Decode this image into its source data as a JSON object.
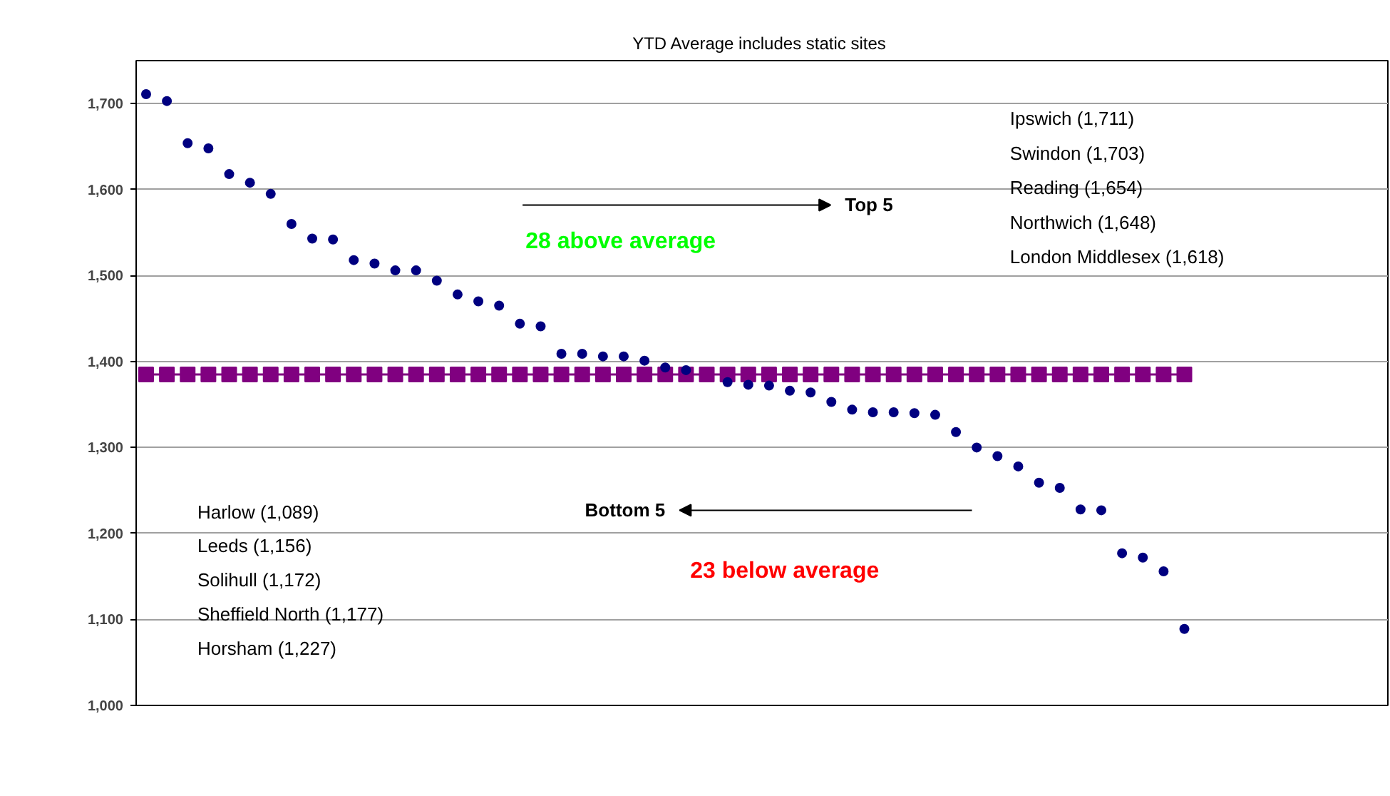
{
  "chart_data": {
    "type": "scatter",
    "title": "YTD  Average includes static sites",
    "categories": [
      null,
      null,
      null,
      null,
      null,
      null,
      null,
      null,
      null,
      null,
      null,
      null,
      null,
      null,
      null,
      null,
      null,
      null,
      null,
      null,
      null,
      null,
      null,
      null,
      null,
      null,
      null,
      null,
      null,
      null,
      null,
      null,
      null,
      null,
      null,
      null,
      null,
      null,
      null,
      null,
      null,
      null,
      null,
      null,
      null,
      null,
      null,
      null,
      null,
      null,
      null
    ],
    "series": [
      {
        "marker": "circle",
        "color": "#000080",
        "values": [
          1711,
          1703,
          1654,
          1648,
          1618,
          1608,
          1595,
          1560,
          1543,
          1542,
          1518,
          1514,
          1506,
          1506,
          1494,
          1478,
          1470,
          1465,
          1444,
          1441,
          1409,
          1409,
          1406,
          1406,
          1401,
          1393,
          1390,
          null,
          1376,
          1373,
          1372,
          1366,
          1364,
          1353,
          1344,
          1341,
          1341,
          1340,
          1338,
          1318,
          1300,
          1290,
          1278,
          1259,
          1253,
          1228,
          1227,
          1177,
          1172,
          1156,
          1089
        ]
      },
      {
        "type": "line",
        "marker": "square",
        "color": "#800080",
        "values": [
          1385,
          1385,
          1385,
          1385,
          1385,
          1385,
          1385,
          1385,
          1385,
          1385,
          1385,
          1385,
          1385,
          1385,
          1385,
          1385,
          1385,
          1385,
          1385,
          1385,
          1385,
          1385,
          1385,
          1385,
          1385,
          1385,
          1385,
          1385,
          1385,
          1385,
          1385,
          1385,
          1385,
          1385,
          1385,
          1385,
          1385,
          1385,
          1385,
          1385,
          1385,
          1385,
          1385,
          1385,
          1385,
          1385,
          1385,
          1385,
          1385,
          1385,
          1385
        ]
      }
    ],
    "ylim": [
      1000,
      1750
    ],
    "yticks": [
      {
        "value": 1000,
        "label": "1,000"
      },
      {
        "value": 1100,
        "label": "1,100"
      },
      {
        "value": 1200,
        "label": "1,200"
      },
      {
        "value": 1300,
        "label": "1,300"
      },
      {
        "value": 1400,
        "label": "1,400"
      },
      {
        "value": 1500,
        "label": "1,500"
      },
      {
        "value": 1600,
        "label": "1,600"
      },
      {
        "value": 1700,
        "label": "1,700"
      }
    ],
    "grid": "y",
    "tick_labels": "y",
    "annotations": [
      "Top 5",
      "28 above average",
      "Ipswich (1,711)",
      "Swindon (1,703)",
      "Reading (1,654)",
      "Northwich (1,648)",
      "London Middlesex (1,618)",
      "Bottom 5",
      "23 below average",
      "Harlow (1,089)",
      "Leeds (1,156)",
      "Solihull (1,172)",
      "Sheffield North (1,177)",
      "Horsham (1,227)"
    ]
  }
}
